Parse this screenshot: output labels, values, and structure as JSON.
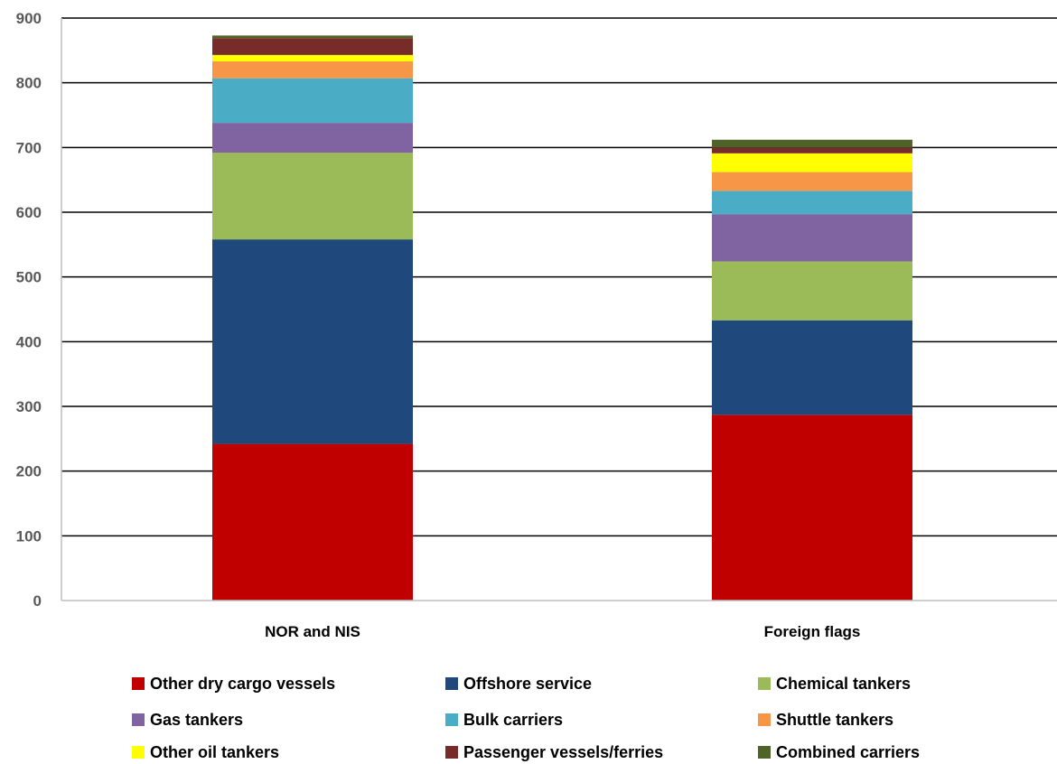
{
  "chart_data": {
    "type": "bar",
    "stacked": true,
    "categories": [
      "NOR and NIS",
      "Foreign flags"
    ],
    "ylim": [
      0,
      900
    ],
    "yticks": [
      0,
      100,
      200,
      300,
      400,
      500,
      600,
      700,
      800,
      900
    ],
    "grid": true,
    "legend_position": "bottom",
    "series": [
      {
        "name": "Other dry cargo vessels",
        "color": "#C00000",
        "values": [
          242,
          287
        ]
      },
      {
        "name": "Offshore service",
        "color": "#1F497D",
        "values": [
          316,
          146
        ]
      },
      {
        "name": "Chemical tankers",
        "color": "#9BBB59",
        "values": [
          134,
          91
        ]
      },
      {
        "name": "Gas tankers",
        "color": "#8064A2",
        "values": [
          46,
          73
        ]
      },
      {
        "name": "Bulk carriers",
        "color": "#4BACC6",
        "values": [
          69,
          36
        ]
      },
      {
        "name": "Shuttle tankers",
        "color": "#F79646",
        "values": [
          26,
          29
        ]
      },
      {
        "name": "Other oil tankers",
        "color": "#FFFF00",
        "values": [
          10,
          29
        ]
      },
      {
        "name": "Passenger vessels/ferries",
        "color": "#772C2A",
        "values": [
          26,
          9
        ]
      },
      {
        "name": "Combined carriers",
        "color": "#4F6228",
        "values": [
          4,
          12
        ]
      }
    ]
  }
}
